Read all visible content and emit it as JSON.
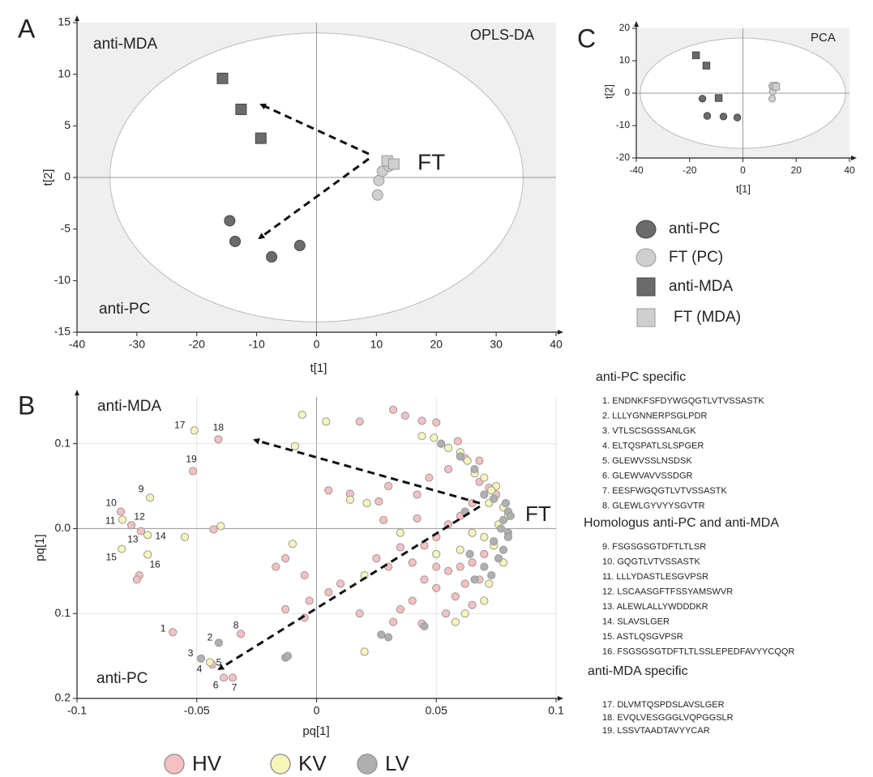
{
  "chart_data": [
    {
      "type": "scatter",
      "panel": "A",
      "x_label": "t[1]",
      "y_label": "t[2]",
      "annotations": [
        "anti-MDA",
        "OPLS-DA",
        "FT",
        "anti-PC"
      ],
      "xlim": [
        -40,
        40
      ],
      "ylim": [
        -15,
        15
      ],
      "xticks": [
        -40,
        -30,
        -20,
        -10,
        0,
        10,
        20,
        30,
        40
      ],
      "yticks": [
        -15,
        -10,
        -5,
        0,
        5,
        10,
        15
      ],
      "grid": false,
      "ellipse_radii": [
        34.5,
        14
      ],
      "legend": "right",
      "series": [
        {
          "name": "anti-PC",
          "color": "#6b6b6b",
          "marker": "circle",
          "x": [
            -14.5,
            -13.6,
            -7.5,
            -2.8
          ],
          "values": [
            -4.2,
            -6.2,
            -7.7,
            -6.6
          ]
        },
        {
          "name": "FT (PC)",
          "color": "#cfcfcf",
          "marker": "circle",
          "x": [
            10.2,
            10.4,
            11.0,
            12.1
          ],
          "values": [
            -1.7,
            -0.3,
            0.6,
            1.1
          ]
        },
        {
          "name": "anti-MDA",
          "color": "#6b6b6b",
          "marker": "square",
          "x": [
            -15.7,
            -12.6,
            -9.3
          ],
          "values": [
            9.6,
            6.6,
            3.8
          ]
        },
        {
          "name": "FT (MDA)",
          "color": "#cfcfcf",
          "marker": "square",
          "x": [
            11.8,
            12.9
          ],
          "values": [
            1.6,
            1.3
          ]
        }
      ]
    },
    {
      "type": "scatter",
      "panel": "B",
      "x_label": "pq[1]",
      "y_label": "pq[1]",
      "annotations": [
        "anti-MDA",
        "FT",
        "anti-PC"
      ],
      "xlim": [
        -0.1,
        0.1
      ],
      "ylim": [
        -0.2,
        0.155
      ],
      "xticks": [
        -0.1,
        -0.05,
        0,
        0.05,
        0.1
      ],
      "yticks": [
        {
          "value": -0.2,
          "label": "0.2"
        },
        {
          "value": -0.1,
          "label": "0.1"
        },
        {
          "value": 0,
          "label": "0.0"
        },
        0.1
      ],
      "grid": true,
      "legend": "bottom",
      "series": [
        {
          "name": "HV",
          "color": "#f6c0c0",
          "marker": "circle",
          "x": [
            -0.06,
            -0.0435,
            -0.0387,
            -0.035,
            -0.0316,
            -0.0817,
            -0.0773,
            -0.0733,
            -0.041,
            -0.0516,
            0.032,
            0.018,
            0.037,
            0.044,
            0.05,
            0.059,
            0.062,
            0.068,
            0.055,
            0.005,
            0.014,
            0.03,
            0.026,
            0.047,
            0.042,
            0.042,
            0.028,
            0.068,
            0.072,
            0.075,
            0.065,
            0.06,
            0.055,
            0.05,
            0.045,
            0.035,
            0.025,
            0.03,
            0.04,
            0.05,
            0.055,
            0.06,
            0.065,
            0.07,
            0.068,
            0.062,
            0.058,
            0.05,
            0.045,
            0.04,
            0.035,
            0.032,
            0.044,
            0.054,
            0.065,
            0.018,
            0.01,
            0.005,
            -0.003,
            -0.013,
            -0.017,
            -0.005,
            -0.013,
            -0.005,
            -0.043,
            -0.074,
            -0.075
          ],
          "values": [
            -0.122,
            -0.16,
            -0.1756,
            -0.1756,
            -0.124,
            0.02,
            0.004,
            -0.003,
            0.105,
            0.0677,
            0.14,
            0.126,
            0.133,
            0.127,
            0.125,
            0.103,
            0.083,
            0.08,
            0.07,
            0.045,
            0.041,
            0.05,
            0.032,
            0.06,
            0.04,
            0.012,
            0.01,
            0.055,
            0.048,
            0.04,
            0.03,
            0.015,
            0.005,
            -0.01,
            -0.02,
            -0.022,
            -0.035,
            -0.045,
            -0.04,
            -0.045,
            -0.05,
            -0.045,
            -0.04,
            -0.03,
            -0.06,
            -0.065,
            -0.08,
            -0.07,
            -0.06,
            -0.085,
            -0.095,
            -0.11,
            -0.112,
            -0.1,
            -0.09,
            -0.1,
            -0.065,
            -0.075,
            -0.085,
            -0.035,
            -0.045,
            -0.055,
            -0.095,
            -0.105,
            -0.001,
            -0.055,
            -0.06
          ],
          "point_labels": [
            "1",
            "5",
            "6",
            "7",
            "8",
            "10",
            "12",
            "13",
            "18",
            "19",
            null,
            null,
            null,
            null,
            null,
            null,
            null,
            null,
            null,
            null,
            null,
            null,
            null,
            null,
            null,
            null,
            null,
            null,
            null,
            null,
            null,
            null,
            null,
            null,
            null,
            null,
            null,
            null,
            null,
            null,
            null,
            null,
            null,
            null,
            null,
            null,
            null,
            null,
            null,
            null,
            null,
            null,
            null,
            null,
            null,
            null,
            null,
            null,
            null,
            null,
            null,
            null,
            null,
            null,
            null,
            null,
            null
          ]
        },
        {
          "name": "KV",
          "color": "#f7f5b8",
          "marker": "circle",
          "x": [
            -0.0445,
            -0.0695,
            -0.081,
            -0.0705,
            -0.0813,
            -0.0705,
            -0.051,
            -0.055,
            -0.04,
            -0.006,
            0.004,
            -0.009,
            0.014,
            0.021,
            0.044,
            0.049,
            0.055,
            0.06,
            0.063,
            0.07,
            0.075,
            0.072,
            0.078,
            0.08,
            0.076,
            0.07,
            0.074,
            0.065,
            0.06,
            0.05,
            0.035,
            0.02,
            -0.01,
            0.02,
            0.062,
            0.07,
            0.072,
            0.058,
            0.078,
            0.073,
            0.066
          ],
          "values": [
            -0.1575,
            0.0363,
            0.0105,
            -0.0076,
            -0.024,
            -0.0305,
            0.1155,
            -0.01,
            0.003,
            0.134,
            0.126,
            0.097,
            0.034,
            0.03,
            0.109,
            0.107,
            0.095,
            0.09,
            0.08,
            0.06,
            0.05,
            0.03,
            0.025,
            0.015,
            0.005,
            -0.01,
            -0.02,
            -0.005,
            -0.025,
            -0.03,
            -0.005,
            -0.055,
            -0.018,
            -0.145,
            -0.1,
            -0.085,
            -0.065,
            -0.11,
            -0.04,
            0.045,
            0.065
          ],
          "point_labels": [
            "4",
            "9",
            "11",
            "14",
            "15",
            "16",
            "17",
            null,
            null,
            null,
            null,
            null,
            null,
            null,
            null,
            null,
            null,
            null,
            null,
            null,
            null,
            null,
            null,
            null,
            null,
            null,
            null,
            null,
            null,
            null,
            null,
            null,
            null,
            null,
            null,
            null,
            null,
            null,
            null,
            null,
            null
          ]
        },
        {
          "name": "LV",
          "color": "#b0b0b0",
          "marker": "circle",
          "x": [
            -0.0408,
            -0.0482,
            0.052,
            0.06,
            0.066,
            0.07,
            0.074,
            0.079,
            0.08,
            0.078,
            0.077,
            0.08,
            0.074,
            0.078,
            0.076,
            0.07,
            0.073,
            0.066,
            0.064,
            0.062,
            0.027,
            0.03,
            0.045,
            -0.013,
            -0.012,
            0.081,
            0.08
          ],
          "values": [
            -0.1345,
            -0.153,
            0.1,
            0.085,
            0.07,
            0.04,
            0.035,
            0.03,
            0.02,
            0.01,
            0,
            -0.005,
            -0.015,
            -0.025,
            -0.035,
            -0.045,
            -0.055,
            -0.06,
            -0.03,
            0.02,
            -0.125,
            -0.128,
            -0.115,
            -0.152,
            -0.15,
            0.015,
            -0.01
          ],
          "point_labels": [
            "2",
            "3",
            null,
            null,
            null,
            null,
            null,
            null,
            null,
            null,
            null,
            null,
            null,
            null,
            null,
            null,
            null,
            null,
            null,
            null,
            null,
            null,
            null,
            null,
            null,
            null,
            null
          ]
        }
      ]
    },
    {
      "type": "scatter",
      "panel": "C",
      "x_label": "t[1]",
      "y_label": "t[2]",
      "annotations": [
        "PCA"
      ],
      "xlim": [
        -40,
        40
      ],
      "ylim": [
        -20,
        20
      ],
      "xticks": [
        -40,
        -20,
        0,
        20,
        40
      ],
      "yticks": [
        -20,
        -10,
        0,
        10,
        20
      ],
      "grid": false,
      "ellipse_radii": [
        38.5,
        17
      ],
      "series": [
        {
          "color": "#6b6b6b",
          "marker": "circle",
          "x": [
            -15.2,
            -13.4,
            -7.3,
            -2.1
          ],
          "values": [
            -1.7,
            -7,
            -7.2,
            -7.5
          ]
        },
        {
          "color": "#cfcfcf",
          "marker": "circle",
          "x": [
            11,
            12,
            11.2,
            11
          ],
          "values": [
            2.2,
            2,
            0.5,
            -1.7
          ]
        },
        {
          "color": "#6b6b6b",
          "marker": "square",
          "x": [
            -17.6,
            -13.7,
            -9.1
          ],
          "values": [
            11.7,
            8.5,
            -1.5
          ]
        },
        {
          "color": "#cfcfcf",
          "marker": "square",
          "x": [
            11.8,
            12.5
          ],
          "values": [
            2.3,
            2.0
          ]
        }
      ]
    }
  ],
  "peptide_lists": [
    {
      "heading": "anti-PC specific",
      "items": [
        "1. ENDNKFSFDYWGQGTLVTVSSASTK",
        "2. LLLYGNNERPSGLPDR",
        "3. VTLSCSGSSANLGK",
        "4. ELTQSPATLSLSPGER",
        "5. GLEWVSSLNSDSK",
        "6. GLEWVAVVSSDGR",
        "7. EESFWGQGTLVTVSSASTK",
        "8. GLEWLGYVYYSGVTR"
      ]
    },
    {
      "heading": "Homologus anti-PC and anti-MDA",
      "items": [
        "9. FSGSGSGTDFTLTLSR",
        "10. GQGTLVTVSSASTK",
        "11. LLLYDASTLESGVPSR",
        "12. LSCAASGFTFSSYAMSWVR",
        "13. ALEWLALLYWDDDKR",
        "14. SLAVSLGER",
        "15. ASTLQSGVPSR",
        "16. FSGSGSGTDFTLTLSSLEPEDFAVYYCQQR"
      ]
    },
    {
      "heading": "anti-MDA specific",
      "items": [
        "17. DLVMTQSPDSLAVSLGER",
        "18. EVQLVESGGGLVQPGGSLR",
        "19. LSSVTAADTAVYYCAR"
      ]
    }
  ]
}
